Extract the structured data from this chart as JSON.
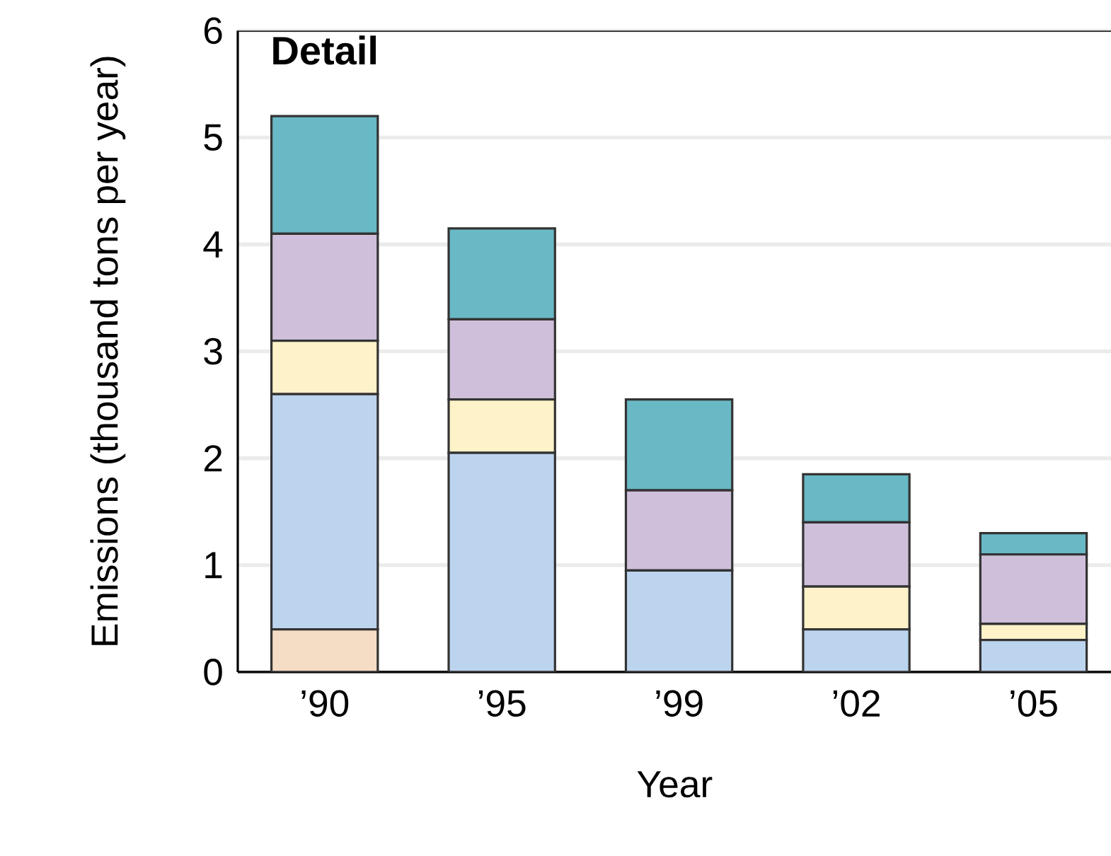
{
  "chart_data": {
    "type": "bar",
    "stacked": true,
    "title": "Detail",
    "xlabel": "Year",
    "ylabel": "Emissions (thousand tons per year)",
    "categories": [
      "’90",
      "’95",
      "’99",
      "’02",
      "’05"
    ],
    "series": [
      {
        "color": "#f5dcc4",
        "values": [
          0.4,
          0,
          0,
          0,
          0
        ]
      },
      {
        "color": "#bdd4ee",
        "values": [
          2.2,
          2.05,
          0.95,
          0.4,
          0.3
        ]
      },
      {
        "color": "#fdf2c8",
        "values": [
          0.5,
          0.5,
          0,
          0.4,
          0.15
        ]
      },
      {
        "color": "#cfbfdb",
        "values": [
          1.0,
          0.75,
          0.75,
          0.6,
          0.65
        ]
      },
      {
        "color": "#69b8c5",
        "values": [
          1.1,
          0.85,
          0.85,
          0.45,
          0.2
        ]
      }
    ],
    "ylim": [
      0,
      6
    ],
    "yticks": [
      0,
      1,
      2,
      3,
      4,
      5,
      6
    ],
    "grid": "y"
  }
}
